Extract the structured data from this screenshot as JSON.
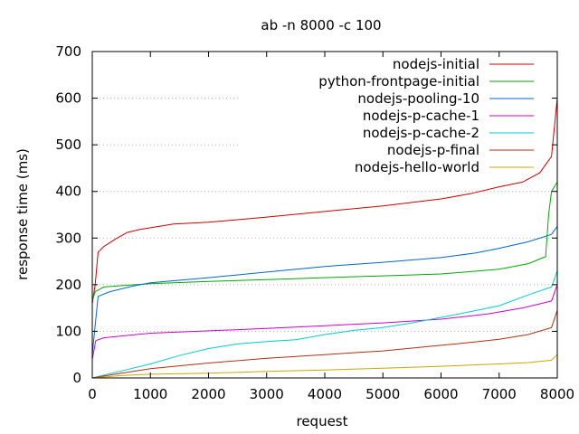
{
  "chart_data": {
    "type": "line",
    "title": "ab -n 8000 -c 100",
    "xlabel": "request",
    "ylabel": "response time (ms)",
    "xlim": [
      0,
      8000
    ],
    "ylim": [
      0,
      700
    ],
    "xticks": [
      0,
      1000,
      2000,
      3000,
      4000,
      5000,
      6000,
      7000,
      8000
    ],
    "yticks": [
      0,
      100,
      200,
      300,
      400,
      500,
      600,
      700
    ],
    "grid": true,
    "legend_position": "top-right",
    "series": [
      {
        "name": "nodejs-initial",
        "color": "#cc0000",
        "points": [
          [
            0,
            160
          ],
          [
            50,
            200
          ],
          [
            100,
            270
          ],
          [
            200,
            282
          ],
          [
            400,
            298
          ],
          [
            600,
            312
          ],
          [
            800,
            318
          ],
          [
            1000,
            322
          ],
          [
            1400,
            330
          ],
          [
            2000,
            334
          ],
          [
            3000,
            345
          ],
          [
            4000,
            357
          ],
          [
            5000,
            369
          ],
          [
            6000,
            384
          ],
          [
            6500,
            395
          ],
          [
            7000,
            410
          ],
          [
            7400,
            420
          ],
          [
            7700,
            440
          ],
          [
            7900,
            475
          ],
          [
            8000,
            600
          ]
        ]
      },
      {
        "name": "python-frontpage-initial",
        "color": "#00aa00",
        "points": [
          [
            0,
            165
          ],
          [
            50,
            185
          ],
          [
            200,
            195
          ],
          [
            500,
            198
          ],
          [
            1000,
            202
          ],
          [
            2000,
            207
          ],
          [
            3000,
            211
          ],
          [
            4000,
            215
          ],
          [
            5000,
            219
          ],
          [
            6000,
            223
          ],
          [
            7000,
            233
          ],
          [
            7500,
            245
          ],
          [
            7800,
            260
          ],
          [
            7850,
            350
          ],
          [
            7900,
            400
          ],
          [
            8000,
            420
          ]
        ]
      },
      {
        "name": "nodejs-pooling-10",
        "color": "#0066cc",
        "points": [
          [
            0,
            50
          ],
          [
            100,
            175
          ],
          [
            300,
            185
          ],
          [
            700,
            197
          ],
          [
            1000,
            204
          ],
          [
            2000,
            215
          ],
          [
            3000,
            227
          ],
          [
            4000,
            239
          ],
          [
            5000,
            248
          ],
          [
            6000,
            258
          ],
          [
            6600,
            268
          ],
          [
            7000,
            278
          ],
          [
            7500,
            292
          ],
          [
            7900,
            308
          ],
          [
            8000,
            325
          ]
        ]
      },
      {
        "name": "nodejs-p-cache-1",
        "color": "#cc00cc",
        "points": [
          [
            0,
            40
          ],
          [
            60,
            80
          ],
          [
            200,
            86
          ],
          [
            500,
            90
          ],
          [
            1000,
            96
          ],
          [
            2000,
            101
          ],
          [
            3000,
            106
          ],
          [
            4000,
            112
          ],
          [
            5000,
            118
          ],
          [
            6000,
            126
          ],
          [
            6800,
            137
          ],
          [
            7400,
            150
          ],
          [
            7800,
            162
          ],
          [
            7900,
            165
          ],
          [
            8000,
            200
          ]
        ]
      },
      {
        "name": "nodejs-p-cache-2",
        "color": "#00cccc",
        "points": [
          [
            0,
            0
          ],
          [
            500,
            15
          ],
          [
            1000,
            30
          ],
          [
            1500,
            48
          ],
          [
            2000,
            63
          ],
          [
            2500,
            73
          ],
          [
            3000,
            78
          ],
          [
            3500,
            82
          ],
          [
            4000,
            93
          ],
          [
            4500,
            102
          ],
          [
            5000,
            108
          ],
          [
            5500,
            118
          ],
          [
            6000,
            130
          ],
          [
            6500,
            142
          ],
          [
            7000,
            155
          ],
          [
            7500,
            178
          ],
          [
            7900,
            195
          ],
          [
            8000,
            230
          ]
        ]
      },
      {
        "name": "nodejs-p-final",
        "color": "#b03010",
        "points": [
          [
            0,
            0
          ],
          [
            500,
            10
          ],
          [
            1000,
            20
          ],
          [
            1500,
            26
          ],
          [
            2000,
            32
          ],
          [
            3000,
            42
          ],
          [
            4000,
            50
          ],
          [
            5000,
            58
          ],
          [
            6000,
            70
          ],
          [
            6500,
            76
          ],
          [
            7000,
            83
          ],
          [
            7500,
            93
          ],
          [
            7900,
            108
          ],
          [
            8000,
            145
          ]
        ]
      },
      {
        "name": "nodejs-hello-world",
        "color": "#c8aa00",
        "points": [
          [
            0,
            0
          ],
          [
            500,
            5
          ],
          [
            1000,
            8
          ],
          [
            2000,
            10
          ],
          [
            3000,
            14
          ],
          [
            4000,
            17
          ],
          [
            5000,
            21
          ],
          [
            6000,
            25
          ],
          [
            7000,
            30
          ],
          [
            7500,
            33
          ],
          [
            7900,
            38
          ],
          [
            8000,
            50
          ]
        ]
      }
    ]
  }
}
